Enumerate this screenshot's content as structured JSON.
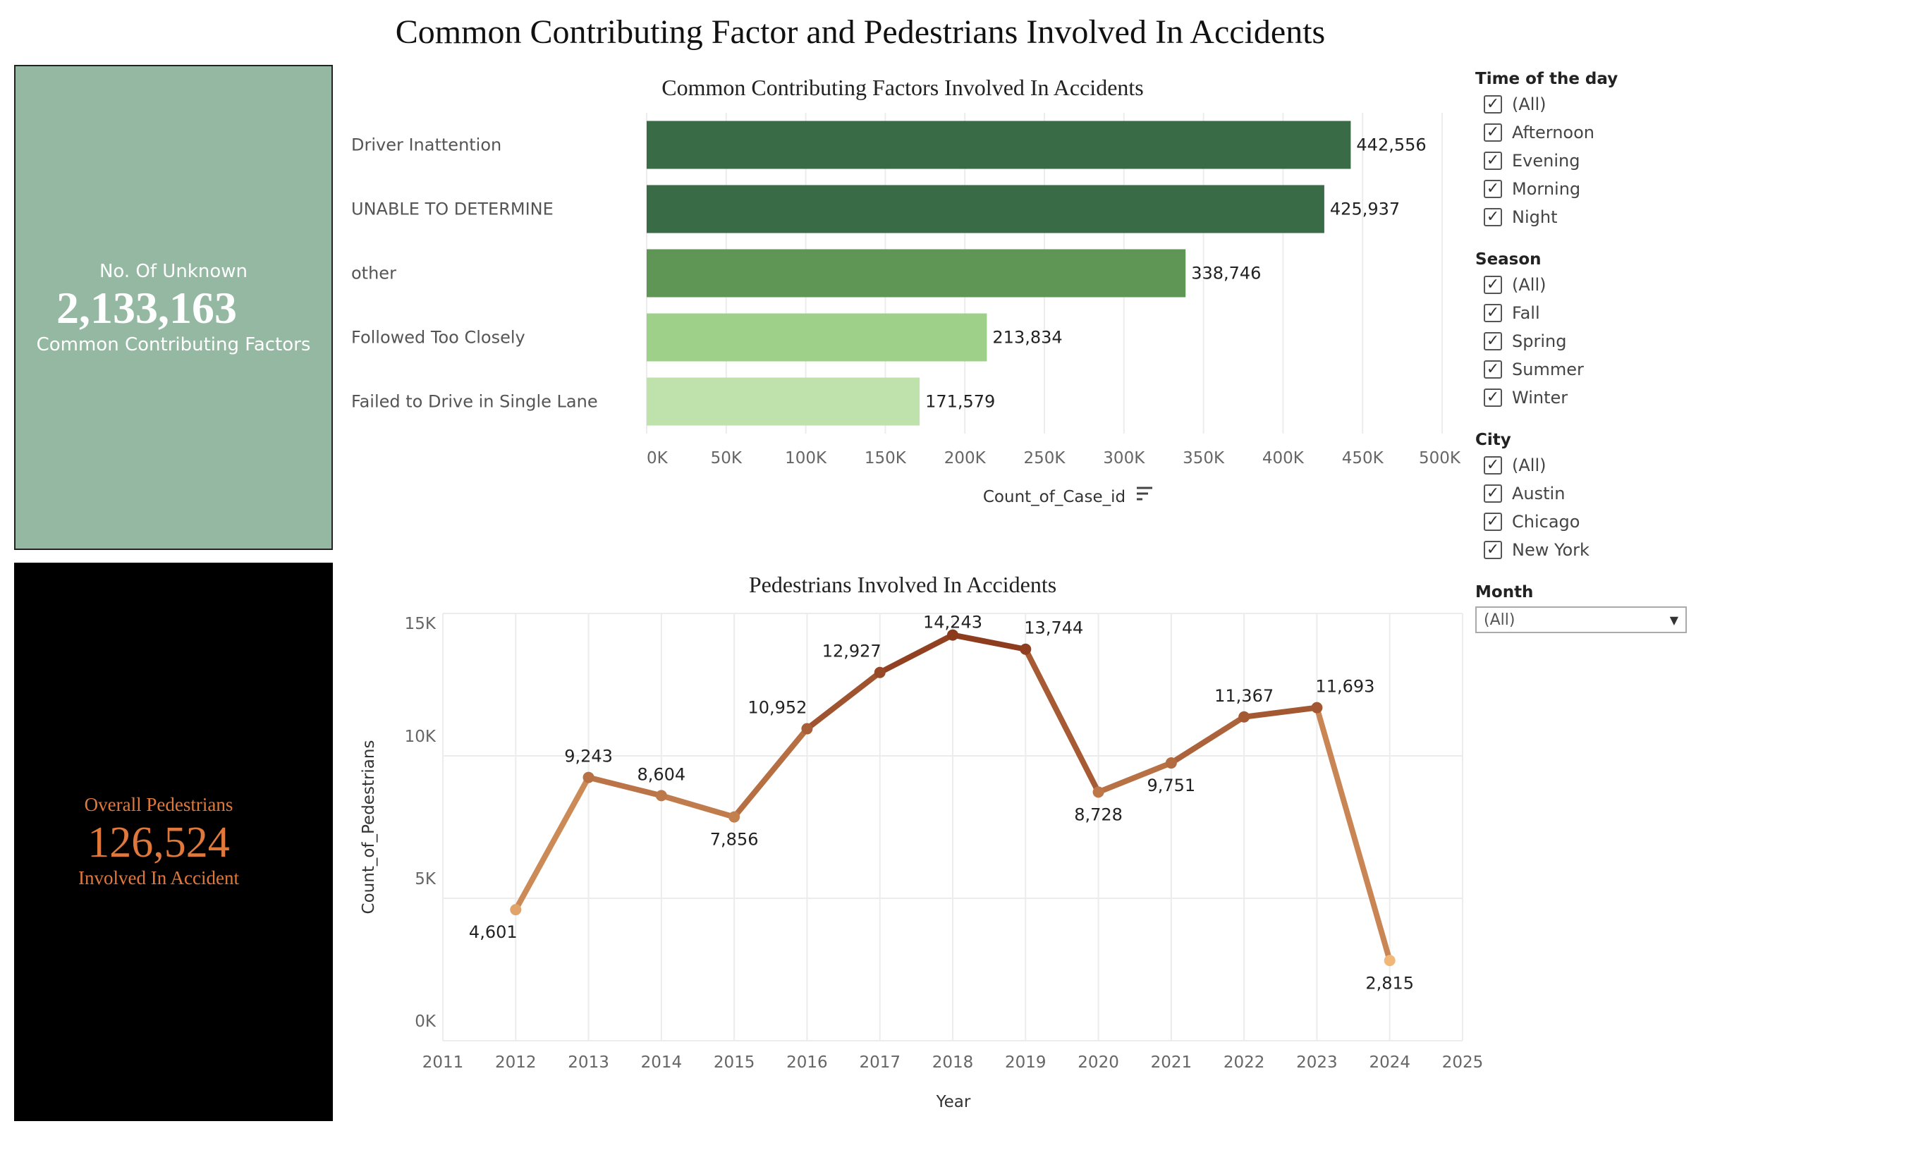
{
  "title": "Common Contributing Factor and Pedestrians Involved In Accidents",
  "kpi_unknown": {
    "label_top": "No. Of Unknown",
    "value": "2,133,163",
    "label_bottom": "Common Contributing Factors",
    "bg_color": "#94b8a2"
  },
  "kpi_pedestrians": {
    "label_top": "Overall Pedestrians",
    "value": "126,524",
    "label_bottom": "Involved In Accident",
    "text_color": "#e0783c"
  },
  "chart_data": [
    {
      "type": "bar",
      "orientation": "horizontal",
      "title": "Common Contributing Factors Involved In Accidents",
      "categories": [
        "Driver Inattention",
        "UNABLE TO DETERMINE",
        "other",
        "Followed Too Closely",
        "Failed to Drive in Single Lane"
      ],
      "values": [
        442556,
        425937,
        338746,
        213834,
        171579
      ],
      "value_labels": [
        "442,556",
        "425,937",
        "338,746",
        "213,834",
        "171,579"
      ],
      "colors": [
        "#386b46",
        "#386b46",
        "#5f9656",
        "#9ed08a",
        "#bfe2ad"
      ],
      "xlabel": "Count_of_Case_id",
      "xlim": [
        0,
        500000
      ],
      "xticks": [
        "0K",
        "50K",
        "100K",
        "150K",
        "200K",
        "250K",
        "300K",
        "350K",
        "400K",
        "450K",
        "500K"
      ],
      "grid": true
    },
    {
      "type": "line",
      "title": "Pedestrians Involved In Accidents",
      "x": [
        2012,
        2013,
        2014,
        2015,
        2016,
        2017,
        2018,
        2019,
        2020,
        2021,
        2022,
        2023,
        2024
      ],
      "values": [
        4601,
        9243,
        8604,
        7856,
        10952,
        12927,
        14243,
        13744,
        8728,
        9751,
        11367,
        11693,
        2815
      ],
      "value_labels": [
        "4,601",
        "9,243",
        "8,604",
        "7,856",
        "10,952",
        "12,927",
        "14,243",
        "13,744",
        "8,728",
        "9,751",
        "11,367",
        "11,693",
        "2,815"
      ],
      "xlabel": "Year",
      "ylabel": "Count_of_Pedestrians",
      "xlim": [
        2011,
        2025
      ],
      "ylim": [
        0,
        15000
      ],
      "xticks": [
        "2011",
        "2012",
        "2013",
        "2014",
        "2015",
        "2016",
        "2017",
        "2018",
        "2019",
        "2020",
        "2021",
        "2022",
        "2023",
        "2024",
        "2025"
      ],
      "yticks": [
        "0K",
        "5K",
        "10K",
        "15K"
      ],
      "color_low": "#f0b778",
      "color_high": "#8b3a1c",
      "grid": true
    }
  ],
  "filters": {
    "time_of_day": {
      "title": "Time of the day",
      "items": [
        "(All)",
        "Afternoon",
        "Evening",
        "Morning",
        "Night"
      ]
    },
    "season": {
      "title": "Season",
      "items": [
        "(All)",
        "Fall",
        "Spring",
        "Summer",
        "Winter"
      ]
    },
    "city": {
      "title": "City",
      "items": [
        "(All)",
        "Austin",
        "Chicago",
        "New York"
      ]
    },
    "month": {
      "title": "Month",
      "selected": "(All)"
    },
    "check_glyph": "✓"
  }
}
